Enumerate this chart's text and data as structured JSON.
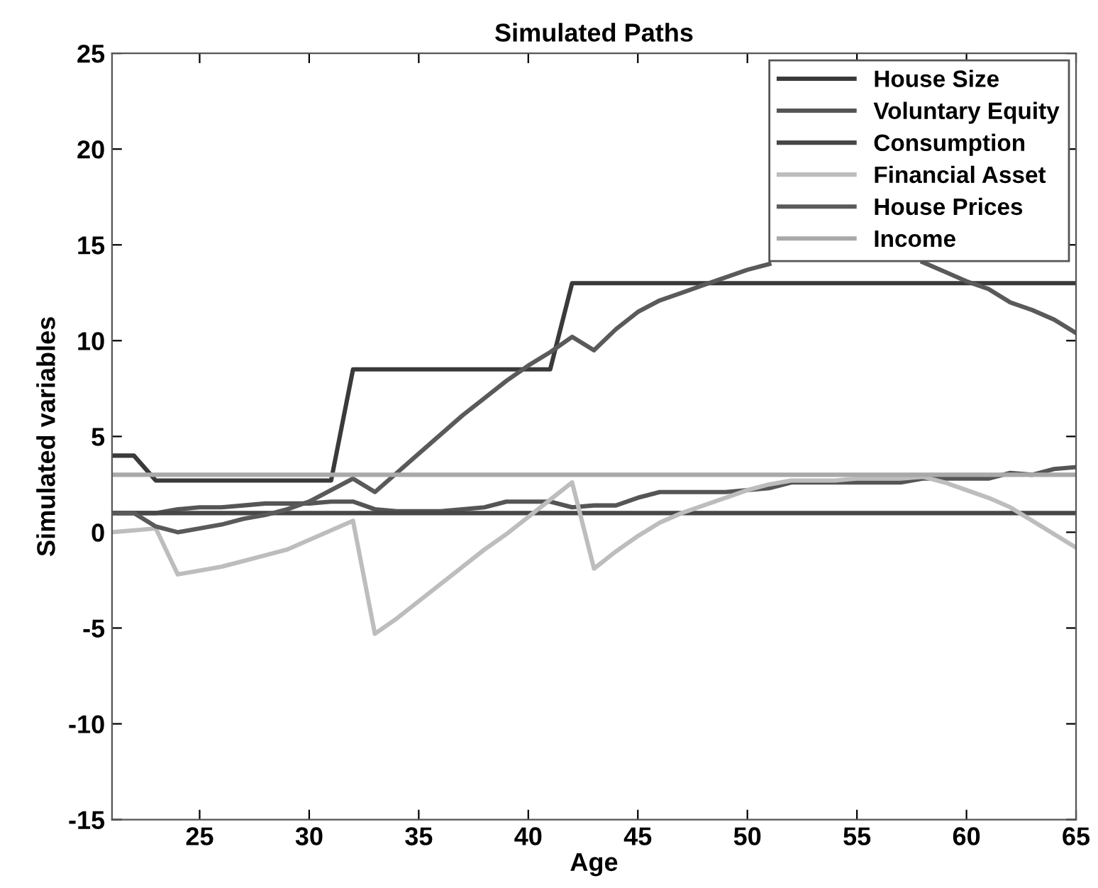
{
  "chart_data": {
    "type": "line",
    "title": "Simulated Paths",
    "xlabel": "Age",
    "ylabel": "Simulated variables",
    "x": [
      21,
      22,
      23,
      24,
      25,
      26,
      27,
      28,
      29,
      30,
      31,
      32,
      33,
      34,
      35,
      36,
      37,
      38,
      39,
      40,
      41,
      42,
      43,
      44,
      45,
      46,
      47,
      48,
      49,
      50,
      51,
      52,
      53,
      54,
      55,
      56,
      57,
      58,
      59,
      60,
      61,
      62,
      63,
      64,
      65
    ],
    "xlim": [
      21,
      65
    ],
    "ylim": [
      -15,
      25
    ],
    "xticks": [
      25,
      30,
      35,
      40,
      45,
      50,
      55,
      60,
      65
    ],
    "yticks": [
      -15,
      -10,
      -5,
      0,
      5,
      10,
      15,
      20,
      25
    ],
    "grid": false,
    "legend": "top right",
    "line_style": "solid",
    "marker": "none",
    "series": [
      {
        "name": "House Size",
        "color": "#3a3a3a",
        "values": [
          4,
          4,
          2.7,
          2.7,
          2.7,
          2.7,
          2.7,
          2.7,
          2.7,
          2.7,
          2.7,
          8.5,
          8.5,
          8.5,
          8.5,
          8.5,
          8.5,
          8.5,
          8.5,
          8.5,
          8.5,
          13,
          13,
          13,
          13,
          13,
          13,
          13,
          13,
          13,
          13,
          13,
          13,
          13,
          13,
          13,
          13,
          13,
          13,
          13,
          13,
          13,
          13,
          13,
          13
        ]
      },
      {
        "name": "Voluntary Equity",
        "color": "#555555",
        "values": [
          1,
          1,
          1,
          1.2,
          1.3,
          1.3,
          1.4,
          1.5,
          1.5,
          1.5,
          1.6,
          1.6,
          1.2,
          1.1,
          1.1,
          1.1,
          1.2,
          1.3,
          1.6,
          1.6,
          1.6,
          1.3,
          1.4,
          1.4,
          1.8,
          2.1,
          2.1,
          2.1,
          2.1,
          2.2,
          2.3,
          2.6,
          2.6,
          2.6,
          2.6,
          2.6,
          2.6,
          2.8,
          2.8,
          2.8,
          2.8,
          3.1,
          3.0,
          3.3,
          3.4
        ]
      },
      {
        "name": "Consumption",
        "color": "#474747",
        "values": [
          1,
          1,
          1,
          1,
          1,
          1,
          1,
          1,
          1,
          1,
          1,
          1,
          1,
          1,
          1,
          1,
          1,
          1,
          1,
          1,
          1,
          1,
          1,
          1,
          1,
          1,
          1,
          1,
          1,
          1,
          1,
          1,
          1,
          1,
          1,
          1,
          1,
          1,
          1,
          1,
          1,
          1,
          1,
          1,
          1
        ]
      },
      {
        "name": "Financial Asset",
        "color": "#bdbdbd",
        "values": [
          0,
          0.1,
          0.2,
          -2.2,
          -2.0,
          -1.8,
          -1.5,
          -1.2,
          -0.9,
          -0.4,
          0.1,
          0.6,
          -5.3,
          -4.5,
          -3.6,
          -2.7,
          -1.8,
          -0.9,
          -0.1,
          0.8,
          1.7,
          2.6,
          -1.9,
          -1.0,
          -0.2,
          0.5,
          1.0,
          1.4,
          1.8,
          2.2,
          2.5,
          2.7,
          2.7,
          2.7,
          2.8,
          2.8,
          2.8,
          2.9,
          2.6,
          2.2,
          1.8,
          1.3,
          0.6,
          -0.1,
          -0.8
        ]
      },
      {
        "name": "House Prices",
        "color": "#5a5a5a",
        "values": [
          1,
          1,
          0.3,
          0,
          0.2,
          0.4,
          0.7,
          0.9,
          1.2,
          1.6,
          2.2,
          2.8,
          2.1,
          3.1,
          4.1,
          5.1,
          6.1,
          7.0,
          7.9,
          8.7,
          9.4,
          10.2,
          9.5,
          10.6,
          11.5,
          12.1,
          12.5,
          12.9,
          13.3,
          13.7,
          14.0,
          null,
          null,
          null,
          null,
          null,
          null,
          14.1,
          13.6,
          13.1,
          12.7,
          12.0,
          11.6,
          11.1,
          10.4
        ]
      },
      {
        "name": "Income",
        "color": "#a9a9a9",
        "values": [
          3,
          3,
          3,
          3,
          3,
          3,
          3,
          3,
          3,
          3,
          3,
          3,
          3,
          3,
          3,
          3,
          3,
          3,
          3,
          3,
          3,
          3,
          3,
          3,
          3,
          3,
          3,
          3,
          3,
          3,
          3,
          3,
          3,
          3,
          3,
          3,
          3,
          3,
          3,
          3,
          3,
          3,
          3,
          3,
          3
        ]
      }
    ]
  }
}
